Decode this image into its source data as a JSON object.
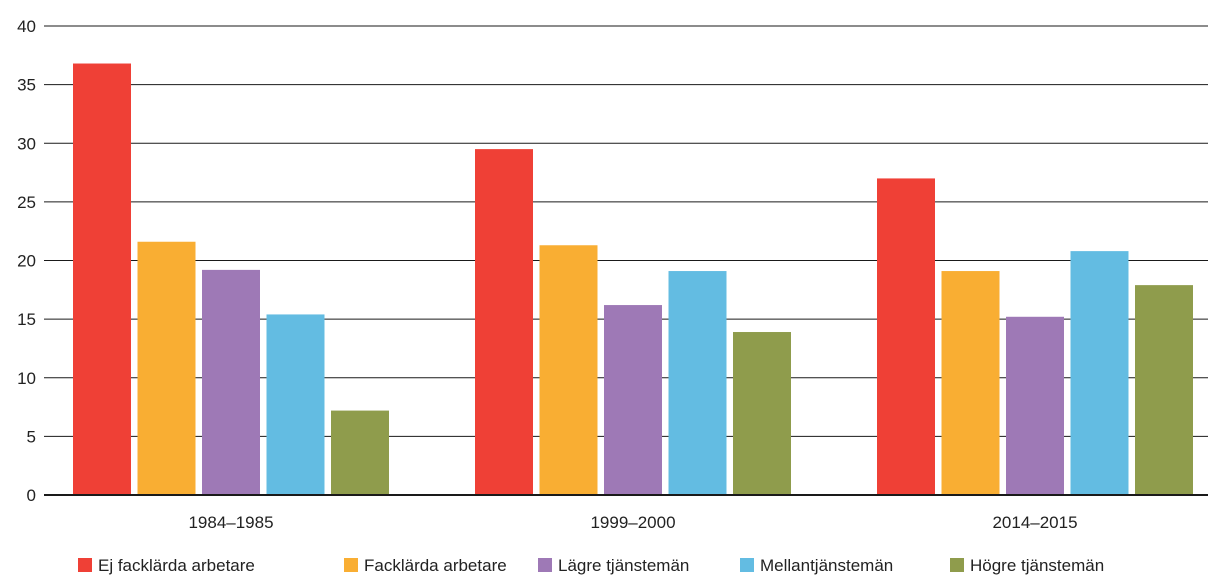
{
  "chart_data": {
    "type": "bar",
    "categories": [
      "1984–1985",
      "1999–2000",
      "2014–2015"
    ],
    "series": [
      {
        "name": "Ej facklärda arbetare",
        "color": "#ef4036",
        "values": [
          36.8,
          29.5,
          27.0
        ]
      },
      {
        "name": "Facklärda arbetare",
        "color": "#f9ae33",
        "values": [
          21.6,
          21.3,
          19.1
        ]
      },
      {
        "name": "Lägre tjänstemän",
        "color": "#9e79b6",
        "values": [
          19.2,
          16.2,
          15.2
        ]
      },
      {
        "name": "Mellantjänstemän",
        "color": "#63bce2",
        "values": [
          15.4,
          19.1,
          20.8
        ]
      },
      {
        "name": "Högre tjänstemän",
        "color": "#8f9c4c",
        "values": [
          7.2,
          13.9,
          17.9
        ]
      }
    ],
    "ylim": [
      0,
      40
    ],
    "yticks": [
      "0",
      "5",
      "10",
      "15",
      "20",
      "25",
      "30",
      "35",
      "40"
    ],
    "grid": true,
    "legend_position": "bottom"
  }
}
